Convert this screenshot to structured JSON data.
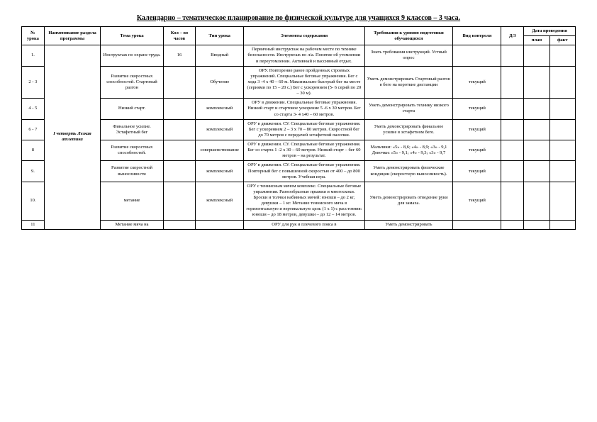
{
  "title": "Календарно – тематическое планирование по физической культуре для учащихся 9 классов – 3 часа.",
  "headers": {
    "num": "№ урока",
    "section": "Наименование раздела программы",
    "theme": "Тема урока",
    "qty": "Кол – во часов",
    "type": "Тип урока",
    "elements": "Элементы содержания",
    "requirements": "Требования к уровню подготовки обучающихся",
    "control": "Вид контроля",
    "homework": "Д/З",
    "date": "Дата проведения",
    "plan": "план",
    "fact": "факт"
  },
  "section": {
    "name": "I четверть Легкая атлетика"
  },
  "rows": [
    {
      "num": "1.",
      "theme": "Инструктаж по охране труда.",
      "qty": "16",
      "type": "Вводный",
      "elements": "Первичный инструктаж на рабочем месте по технике безопасности. Инструктаж по л/а. Понятие об утомлении и переутомлении. Активный и пассивный отдых.",
      "requirements": "Знать требования инструкций. Устный опрос",
      "control": ""
    },
    {
      "num": "2 - 3",
      "theme": "Развитие скоростных способностей. Стартовый разгон",
      "qty": "",
      "type": "Обучение",
      "elements": "ОРУ. Повторение ранее пройденных строевых упражнений. Специальные беговые упражнения. Бег с хода 3 -4 x 40 – 60 м. Максимально быстрый бег на месте (сериями по 15 – 20 с.) Бег с ускорением (5- 6 серий по 20 – 30 м).",
      "requirements": "Уметь демонстрировать Стартовый разгон в беге на короткие дистанции",
      "control": "текущий"
    },
    {
      "num": "4 - 5",
      "theme": "Низкий старт.",
      "qty": "",
      "type": "комплексный",
      "elements": "ОРУ в движении. Специальные беговые упражнения. Низкий старт и стартовое ускорение 5 -6 x 30 метров. Бег со старта 3- 4 x40 – 60 метров.",
      "requirements": "Уметь демонстрировать технику низкого старта",
      "control": "текущий"
    },
    {
      "num": "6 - 7",
      "theme": "Финальное усилие. Эстафетный бег",
      "qty": "",
      "type": "комплексный",
      "elements": "ОРУ в движении. СУ. Специальные беговые упражнения. Бег с ускорением 2 – 3 x 70 – 80 метров. Скоростной бег до 70 метров с передачей эстафетной палочки.",
      "requirements": "Уметь демонстрировать финальное усилие в эстафетном беге.",
      "control": "текущий"
    },
    {
      "num": "8",
      "theme": "Развитие скоростных способностей.",
      "qty": "",
      "type": "совершенствование",
      "elements": "ОРУ в движении. СУ. Специальные беговые упражнения. Бег со старта 1 -2 x 30 – 60 метров. Низкий старт – бег 60 метров – на результат.",
      "requirements": "Мальчики: «5» - 8,6; «4» - 8,9; «3» - 9,1 Девочки: «5» - 9,1; «4» - 9,3; «3» - 9,7",
      "control": "текущий"
    },
    {
      "num": "9.",
      "theme": "Развитие скоростной выносливости",
      "qty": "",
      "type": "комплексный",
      "elements": "ОРУ в движении. СУ. Специальные беговые упражнения. Повторный бег с повышенной скоростью от 400 – до 800 метров. Учебная игра.",
      "requirements": "Уметь демонстрировать физические кондиции (скоростную выносливость).",
      "control": "текущий"
    },
    {
      "num": "10.",
      "theme": "метание",
      "qty": "",
      "type": "комплексный",
      "elements": "ОРУ с теннисным мячом комплекс. Специальные беговые упражнения. Разнообразные прыжки и многоскоки. Броски и толчки набивных мячей: юноши – до 2 кг, девушки – 1 кг. Метание теннисного мяча в горизонтальную и вертикальную цель (1 x 1) с расстояния: юноши – до 18 метров, девушки – до 12 – 14 метров.",
      "requirements": "Уметь демонстрировать отведение руки для замаха.",
      "control": "текущий"
    },
    {
      "num": "11",
      "theme": "Метание мяча на",
      "qty": "",
      "type": "",
      "elements": "ОРУ для рук и плечевого пояса в",
      "requirements": "Уметь демонстрировать",
      "control": ""
    }
  ]
}
